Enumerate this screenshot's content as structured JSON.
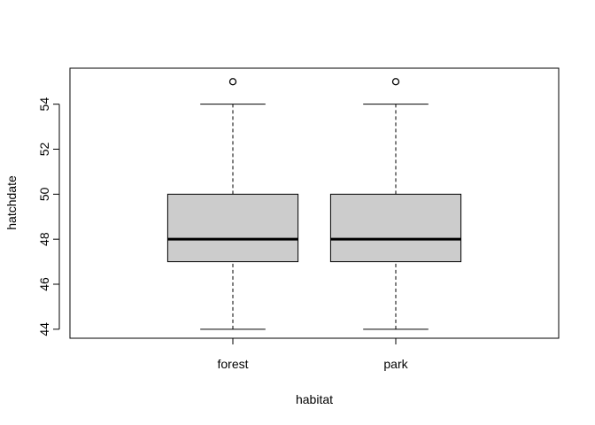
{
  "chart_data": {
    "type": "boxplot",
    "title": "",
    "xlabel": "habitat",
    "ylabel": "hatchdate",
    "ylim": [
      43.6,
      55.6
    ],
    "yticks": [
      44,
      46,
      48,
      50,
      52,
      54
    ],
    "ytick_labels": [
      "44",
      "46",
      "48",
      "50",
      "52",
      "54"
    ],
    "categories": [
      "forest",
      "park"
    ],
    "boxes": [
      {
        "category": "forest",
        "whisker_low": 44,
        "q1": 47,
        "median": 48,
        "q3": 50,
        "whisker_high": 54,
        "outliers": [
          55
        ]
      },
      {
        "category": "park",
        "whisker_low": 44,
        "q1": 47,
        "median": 48,
        "q3": 50,
        "whisker_high": 54,
        "outliers": [
          55
        ]
      }
    ],
    "box_fill": "#cccccc",
    "grid": false,
    "legend": "none"
  }
}
